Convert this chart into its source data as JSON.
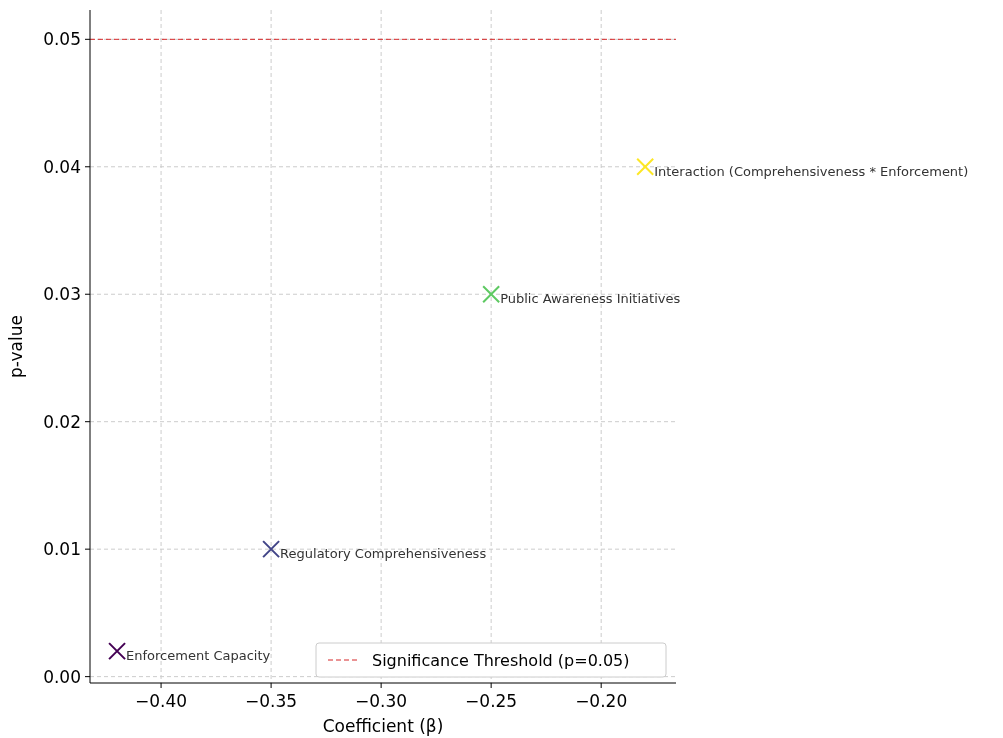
{
  "chart_data": {
    "type": "scatter",
    "xlabel": "Coefficient (β)",
    "ylabel": "p-value",
    "x": [
      -0.42,
      -0.35,
      -0.25,
      -0.18
    ],
    "values": [
      0.002,
      0.01,
      0.03,
      0.04
    ],
    "colors": [
      "#440154",
      "#414487",
      "#5ec962",
      "#fde725"
    ],
    "marker": "cross",
    "xlim": [
      -0.4323,
      -0.166
    ],
    "xticks": [
      {
        "value": -0.4,
        "label": "−0.40"
      },
      {
        "value": -0.35,
        "label": "−0.35"
      },
      {
        "value": -0.3,
        "label": "−0.30"
      },
      {
        "value": -0.25,
        "label": "−0.25"
      },
      {
        "value": -0.2,
        "label": "−0.20"
      }
    ],
    "ylim": [
      -0.0005,
      0.0523
    ],
    "yticks": [
      {
        "value": 0,
        "label": "0.00"
      },
      {
        "value": 0.01,
        "label": "0.01"
      },
      {
        "value": 0.02,
        "label": "0.02"
      },
      {
        "value": 0.03,
        "label": "0.03"
      },
      {
        "value": 0.04,
        "label": "0.04"
      },
      {
        "value": 0.05,
        "label": "0.05"
      }
    ],
    "grid": true,
    "legend": "bottom right",
    "ref_lines": [
      {
        "axis": "y",
        "value": 0.05,
        "label": "Significance Threshold (p=0.05)",
        "color": "#d62728",
        "line_style": "dashed"
      }
    ],
    "annotations": [
      {
        "text": "Enforcement Capacity",
        "x": -0.42,
        "y": 0.002
      },
      {
        "text": "Regulatory Comprehensiveness",
        "x": -0.35,
        "y": 0.01
      },
      {
        "text": "Public Awareness Initiatives",
        "x": -0.25,
        "y": 0.03
      },
      {
        "text": "Interaction (Comprehensiveness * Enforcement)",
        "x": -0.18,
        "y": 0.04
      }
    ]
  }
}
